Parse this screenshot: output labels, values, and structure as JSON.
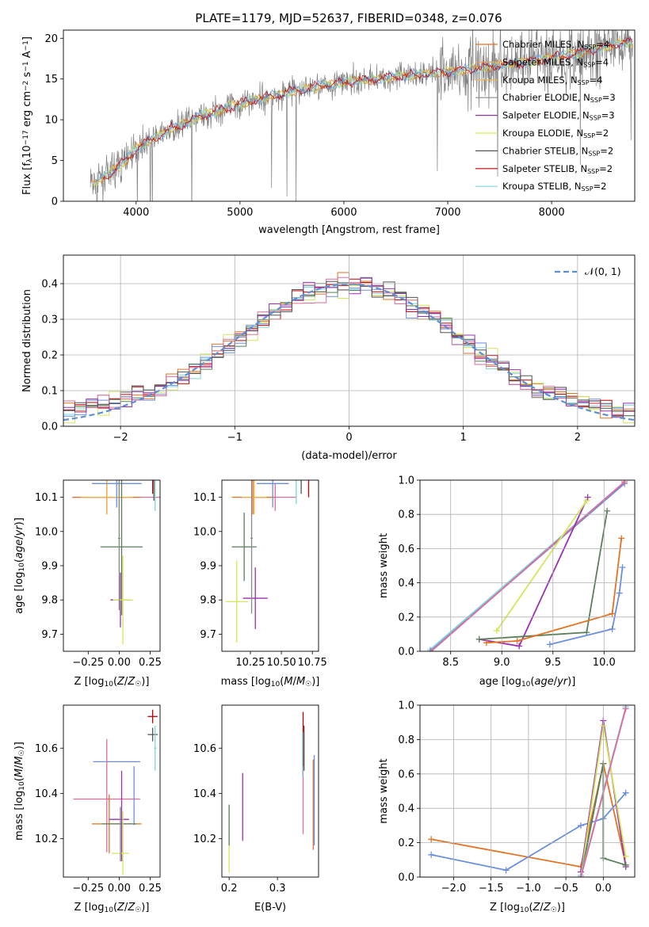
{
  "figure_title": "PLATE=1179, MJD=52637, FIBERID=0348, z=0.076",
  "colors": {
    "Chabrier MILES": "#e37222",
    "Salpeter MILES": "#f0a050",
    "Kroupa MILES": "#f5b041",
    "Chabrier ELODIE": "#888888",
    "Salpeter ELODIE": "#9b30b0",
    "Kroupa ELODIE": "#d4e65a",
    "Chabrier STELIB": "#555555",
    "Salpeter STELIB": "#c00000",
    "Kroupa STELIB": "#7fd4dc",
    "data": "#808080",
    "c1": "#6a8fdc",
    "c2": "#e06b9c",
    "c3": "#5a7f5a",
    "normal": "#5b8fd6"
  },
  "chart_data": [
    {
      "id": "spectrum",
      "type": "line",
      "title": "PLATE=1179, MJD=52637, FIBERID=0348, z=0.076",
      "xlabel": "wavelength [Angstrom, rest frame]",
      "ylabel": "Flux [f_λ 10^-17 erg cm^-2 s^-1 A^-1]",
      "xlim": [
        3300,
        8800
      ],
      "ylim": [
        0,
        21
      ],
      "xticks": [
        "4000",
        "5000",
        "6000",
        "7000",
        "8000"
      ],
      "yticks": [
        "0",
        "5",
        "10",
        "15",
        "20"
      ],
      "legend_position": "top-right",
      "legend": [
        {
          "label": "Chabrier MILES, N",
          "sub": "SSP",
          "suffix": "=4"
        },
        {
          "label": "Salpeter MILES, N",
          "sub": "SSP",
          "suffix": "=4"
        },
        {
          "label": "Kroupa MILES, N",
          "sub": "SSP",
          "suffix": "=4"
        },
        {
          "label": "Chabrier ELODIE, N",
          "sub": "SSP",
          "suffix": "=3"
        },
        {
          "label": "Salpeter ELODIE, N",
          "sub": "SSP",
          "suffix": "=3"
        },
        {
          "label": "Kroupa ELODIE, N",
          "sub": "SSP",
          "suffix": "=2"
        },
        {
          "label": "Chabrier STELIB, N",
          "sub": "SSP",
          "suffix": "=2"
        },
        {
          "label": "Salpeter STELIB, N",
          "sub": "SSP",
          "suffix": "=2"
        },
        {
          "label": "Kroupa STELIB, N",
          "sub": "SSP",
          "suffix": "=2"
        }
      ],
      "continuum_nodes": [
        [
          3560,
          2.2
        ],
        [
          3700,
          3.0
        ],
        [
          3900,
          5.0
        ],
        [
          4000,
          6.5
        ],
        [
          4100,
          7.2
        ],
        [
          4300,
          8.6
        ],
        [
          4600,
          10.3
        ],
        [
          4900,
          11.6
        ],
        [
          5200,
          12.6
        ],
        [
          5500,
          13.5
        ],
        [
          5800,
          14.2
        ],
        [
          6000,
          14.6
        ],
        [
          6300,
          15.0
        ],
        [
          6600,
          15.4
        ],
        [
          6900,
          15.8
        ],
        [
          7200,
          16.2
        ],
        [
          7500,
          16.7
        ],
        [
          7800,
          17.2
        ],
        [
          8100,
          17.8
        ],
        [
          8400,
          18.6
        ],
        [
          8700,
          19.5
        ]
      ]
    },
    {
      "id": "residual",
      "type": "histogram",
      "xlabel": "(data-model)/error",
      "ylabel": "Normed distribution",
      "xlim": [
        -2.5,
        2.5
      ],
      "ylim": [
        0,
        0.48
      ],
      "xticks": [
        "−2",
        "−1",
        "0",
        "1",
        "2"
      ],
      "yticks": [
        "0.0",
        "0.1",
        "0.2",
        "0.3",
        "0.4"
      ],
      "grid": true,
      "legend_position": "top-right",
      "legend_label": "𝒩(0, 1)",
      "bin_width": 0.1
    },
    {
      "id": "age_vs_Z",
      "type": "errorbar",
      "xlabel": "Z [log10(Z/Z☉)]",
      "ylabel": "age [log10(age/yr)]",
      "xlim": [
        -0.45,
        0.33
      ],
      "ylim": [
        9.65,
        10.15
      ],
      "xticks": [
        "−0.25",
        "0.00",
        "0.25"
      ],
      "yticks": [
        "9.7",
        "9.8",
        "9.9",
        "10.0",
        "10.1"
      ],
      "points": [
        {
          "x": 0.0,
          "xerr": 0.38,
          "y": 10.1,
          "yerr": 0.05,
          "c": "c2"
        },
        {
          "x": -0.1,
          "xerr": 0.27,
          "y": 10.1,
          "yerr": 0.05,
          "c": "Chabrier MILES"
        },
        {
          "x": -0.1,
          "xerr": 0.21,
          "y": 10.1,
          "yerr": 0.05,
          "c": "Kroupa MILES"
        },
        {
          "x": -0.02,
          "xerr": 0.2,
          "y": 10.14,
          "yerr": 0.07,
          "c": "c1"
        },
        {
          "x": 0.27,
          "xerr": 0.03,
          "y": 10.17,
          "yerr": 0.06,
          "c": "Salpeter STELIB"
        },
        {
          "x": 0.28,
          "xerr": 0.03,
          "y": 10.17,
          "yerr": 0.08,
          "c": "Chabrier STELIB"
        },
        {
          "x": 0.29,
          "xerr": 0.03,
          "y": 10.17,
          "yerr": 0.11,
          "c": "Kroupa STELIB"
        },
        {
          "x": 0.02,
          "xerr": 0.17,
          "y": 9.955,
          "yerr": 0.2,
          "c": "c3"
        },
        {
          "x": 0.01,
          "xerr": 0.08,
          "y": 9.8,
          "yerr": 0.08,
          "c": "Salpeter ELODIE"
        },
        {
          "x": 0.03,
          "xerr": 0.08,
          "y": 9.8,
          "yerr": 0.13,
          "c": "Kroupa ELODIE"
        },
        {
          "x": 0.0,
          "xerr": 0.01,
          "y": 9.98,
          "yerr": 0.21,
          "c": "Chabrier ELODIE"
        }
      ]
    },
    {
      "id": "age_vs_mass",
      "type": "errorbar",
      "xlabel": "mass [log10(M/M☉)]",
      "ylabel": "",
      "xlim": [
        10.02,
        10.8
      ],
      "ylim": [
        9.65,
        10.15
      ],
      "xticks": [
        "10.25",
        "10.50",
        "10.75"
      ],
      "yticks": [
        "9.7",
        "9.8",
        "9.9",
        "10.0",
        "10.1"
      ],
      "points": [
        {
          "x": 10.45,
          "xerr": 0.17,
          "y": 10.1,
          "yerr": 0.04,
          "c": "c2"
        },
        {
          "x": 10.27,
          "xerr": 0.17,
          "y": 10.1,
          "yerr": 0.05,
          "c": "Chabrier MILES"
        },
        {
          "x": 10.28,
          "xerr": 0.1,
          "y": 10.1,
          "yerr": 0.05,
          "c": "Kroupa MILES"
        },
        {
          "x": 10.43,
          "xerr": 0.13,
          "y": 10.14,
          "yerr": 0.07,
          "c": "c1"
        },
        {
          "x": 10.72,
          "xerr": 0.05,
          "y": 10.17,
          "yerr": 0.07,
          "c": "Salpeter STELIB"
        },
        {
          "x": 10.66,
          "xerr": 0.05,
          "y": 10.17,
          "yerr": 0.06,
          "c": "Chabrier STELIB"
        },
        {
          "x": 10.62,
          "xerr": 0.06,
          "y": 10.17,
          "yerr": 0.09,
          "c": "Kroupa STELIB"
        },
        {
          "x": 10.2,
          "xerr": 0.1,
          "y": 9.955,
          "yerr": 0.1,
          "c": "c3"
        },
        {
          "x": 10.29,
          "xerr": 0.1,
          "y": 9.805,
          "yerr": 0.09,
          "c": "Salpeter ELODIE"
        },
        {
          "x": 10.14,
          "xerr": 0.09,
          "y": 9.795,
          "yerr": 0.12,
          "c": "Kroupa ELODIE"
        },
        {
          "x": 10.26,
          "xerr": 0.01,
          "y": 9.98,
          "yerr": 0.22,
          "c": "Chabrier ELODIE"
        }
      ]
    },
    {
      "id": "weight_vs_age",
      "type": "line",
      "xlabel": "age  [log10(age/yr)]",
      "ylabel": "mass weight",
      "xlim": [
        8.2,
        10.3
      ],
      "ylim": [
        0,
        1
      ],
      "xticks": [
        "8.5",
        "9.0",
        "9.5",
        "10.0"
      ],
      "yticks": [
        "0.0",
        "0.2",
        "0.4",
        "0.6",
        "0.8",
        "1.0"
      ],
      "grid": true,
      "series": [
        {
          "c": "Kroupa STELIB",
          "points": [
            [
              8.3,
              0.01
            ],
            [
              10.2,
              0.99
            ]
          ]
        },
        {
          "c": "c1",
          "points": [
            [
              8.3,
              0.0
            ],
            [
              10.2,
              0.98
            ]
          ]
        },
        {
          "c": "c2",
          "points": [
            [
              8.31,
              0.0
            ],
            [
              10.2,
              0.99
            ]
          ]
        },
        {
          "c": "Salpeter ELODIE",
          "points": [
            [
              8.78,
              0.07
            ],
            [
              9.17,
              0.03
            ],
            [
              9.84,
              0.9
            ]
          ]
        },
        {
          "c": "Kroupa ELODIE",
          "points": [
            [
              8.95,
              0.12
            ],
            [
              9.83,
              0.88
            ]
          ]
        },
        {
          "c": "c3",
          "points": [
            [
              8.78,
              0.07
            ],
            [
              9.83,
              0.11
            ],
            [
              10.03,
              0.82
            ]
          ]
        },
        {
          "c": "Chabrier MILES",
          "points": [
            [
              8.85,
              0.05
            ],
            [
              9.15,
              0.06
            ],
            [
              10.08,
              0.22
            ],
            [
              10.17,
              0.66
            ]
          ]
        },
        {
          "c": "c1",
          "points": [
            [
              9.47,
              0.04
            ],
            [
              10.08,
              0.13
            ],
            [
              10.15,
              0.34
            ],
            [
              10.18,
              0.49
            ]
          ]
        }
      ]
    },
    {
      "id": "mass_vs_Z",
      "type": "errorbar",
      "xlabel": "Z [log10(Z/Z☉)]",
      "ylabel": "mass [log10(M/M☉)]",
      "xlim": [
        -0.45,
        0.33
      ],
      "ylim": [
        10.03,
        10.79
      ],
      "xticks": [
        "−0.25",
        "0.00",
        "0.25"
      ],
      "yticks": [
        "10.2",
        "10.4",
        "10.6"
      ],
      "points": [
        {
          "x": -0.02,
          "xerr": 0.19,
          "y": 10.54,
          "yerr": 0.0,
          "c": "c1"
        },
        {
          "x": -0.1,
          "xerr": 0.27,
          "y": 10.375,
          "yerr": 0.0,
          "c": "c2"
        },
        {
          "x": -0.1,
          "xerr": 0.0,
          "y": 10.39,
          "yerr": 0.25,
          "c": "c2"
        },
        {
          "x": 0.12,
          "xerr": 0.0,
          "y": 10.39,
          "yerr": 0.13,
          "c": "c1"
        },
        {
          "x": 0.27,
          "xerr": 0.04,
          "y": 10.74,
          "yerr": 0.03,
          "c": "Salpeter STELIB"
        },
        {
          "x": 0.27,
          "xerr": 0.04,
          "y": 10.66,
          "yerr": 0.03,
          "c": "Chabrier STELIB"
        },
        {
          "x": 0.29,
          "xerr": 0.01,
          "y": 10.6,
          "yerr": 0.1,
          "c": "Kroupa STELIB"
        },
        {
          "x": -0.02,
          "xerr": 0.2,
          "y": 10.265,
          "yerr": 0.0,
          "c": "Chabrier MILES"
        },
        {
          "x": -0.08,
          "xerr": 0.0,
          "y": 10.265,
          "yerr": 0.13,
          "c": "Chabrier MILES"
        },
        {
          "x": 0.0,
          "xerr": 0.14,
          "y": 10.265,
          "yerr": 0.0,
          "c": "c3"
        },
        {
          "x": 0.0,
          "xerr": 0.08,
          "y": 10.285,
          "yerr": 0.0,
          "c": "Salpeter ELODIE"
        },
        {
          "x": 0.02,
          "xerr": 0.0,
          "y": 10.3,
          "yerr": 0.2,
          "c": "Salpeter ELODIE"
        },
        {
          "x": 0.01,
          "xerr": 0.07,
          "y": 10.135,
          "yerr": 0.0,
          "c": "Kroupa ELODIE"
        },
        {
          "x": 0.03,
          "xerr": 0.0,
          "y": 10.18,
          "yerr": 0.14,
          "c": "Kroupa ELODIE"
        },
        {
          "x": 0.01,
          "xerr": 0.0,
          "y": 10.22,
          "yerr": 0.12,
          "c": "Chabrier ELODIE"
        }
      ]
    },
    {
      "id": "mass_vs_ebv",
      "type": "errorbar",
      "xlabel": "E(B-V)",
      "ylabel": "",
      "xlim": [
        0.185,
        0.385
      ],
      "ylim": [
        10.03,
        10.79
      ],
      "xticks": [
        "0.2",
        "0.3"
      ],
      "yticks": [
        "10.2",
        "10.4",
        "10.6"
      ],
      "points": [
        {
          "x": 0.2,
          "y": 10.2,
          "yerr": 0.15,
          "c": "Kroupa ELODIE"
        },
        {
          "x": 0.2,
          "y": 10.26,
          "yerr": 0.09,
          "c": "c3"
        },
        {
          "x": 0.228,
          "y": 10.34,
          "yerr": 0.15,
          "c": "Salpeter ELODIE"
        },
        {
          "x": 0.353,
          "y": 10.4,
          "yerr": 0.18,
          "c": "c2"
        },
        {
          "x": 0.353,
          "y": 10.64,
          "yerr": 0.12,
          "c": "Salpeter STELIB"
        },
        {
          "x": 0.355,
          "y": 10.6,
          "yerr": 0.1,
          "c": "Chabrier STELIB"
        },
        {
          "x": 0.352,
          "y": 10.57,
          "yerr": 0.1,
          "c": "Kroupa STELIB"
        },
        {
          "x": 0.374,
          "y": 10.35,
          "yerr": 0.2,
          "c": "Chabrier MILES"
        },
        {
          "x": 0.376,
          "y": 10.37,
          "yerr": 0.2,
          "c": "c1"
        }
      ]
    },
    {
      "id": "weight_vs_Z",
      "type": "line",
      "xlabel": "Z [log10(Z/Z☉)]",
      "ylabel": "mass weight",
      "xlim": [
        -2.45,
        0.42
      ],
      "ylim": [
        0,
        1
      ],
      "xticks": [
        "−2.0",
        "−1.5",
        "−1.0",
        "−0.5",
        "0.0"
      ],
      "yticks": [
        "0.0",
        "0.2",
        "0.4",
        "0.6",
        "0.8",
        "1.0"
      ],
      "grid": true,
      "series": [
        {
          "c": "Chabrier MILES",
          "points": [
            [
              -2.3,
              0.22
            ],
            [
              -0.3,
              0.06
            ],
            [
              0.0,
              0.66
            ],
            [
              0.3,
              0.07
            ]
          ]
        },
        {
          "c": "c1",
          "points": [
            [
              -2.3,
              0.13
            ],
            [
              -1.3,
              0.04
            ],
            [
              -0.3,
              0.3
            ],
            [
              0.0,
              0.34
            ],
            [
              0.3,
              0.49
            ]
          ]
        },
        {
          "c": "Salpeter ELODIE",
          "points": [
            [
              -0.3,
              0.03
            ],
            [
              0.0,
              0.91
            ],
            [
              0.3,
              0.06
            ]
          ]
        },
        {
          "c": "Kroupa ELODIE",
          "points": [
            [
              -0.3,
              0.0
            ],
            [
              0.0,
              0.88
            ],
            [
              0.3,
              0.12
            ]
          ]
        },
        {
          "c": "c3",
          "points": [
            [
              -0.3,
              0.0
            ],
            [
              0.0,
              0.66
            ],
            [
              0.0,
              0.11
            ],
            [
              0.3,
              0.07
            ]
          ]
        },
        {
          "c": "Kroupa STELIB",
          "points": [
            [
              -0.3,
              0.01
            ],
            [
              0.3,
              0.99
            ]
          ]
        },
        {
          "c": "c2",
          "points": [
            [
              -0.3,
              0.0
            ],
            [
              0.3,
              0.98
            ]
          ]
        }
      ]
    }
  ]
}
